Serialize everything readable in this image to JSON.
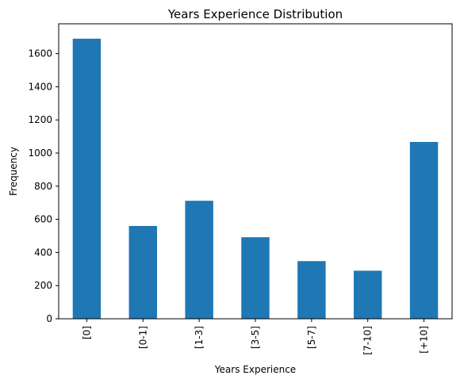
{
  "chart_data": {
    "type": "bar",
    "title": "Years Experience Distribution",
    "xlabel": "Years Experience",
    "ylabel": "Frequency",
    "categories": [
      "[0]",
      "[0-1]",
      "[1-3]",
      "[3-5]",
      "[5-7]",
      "[7-10]",
      "[+10]"
    ],
    "values": [
      1690,
      560,
      712,
      492,
      348,
      290,
      1067
    ],
    "ylim": [
      0,
      1780
    ],
    "yticks": [
      0,
      200,
      400,
      600,
      800,
      1000,
      1200,
      1400,
      1600
    ],
    "bar_color": "#1f77b4",
    "grid": false,
    "legend": "none"
  }
}
